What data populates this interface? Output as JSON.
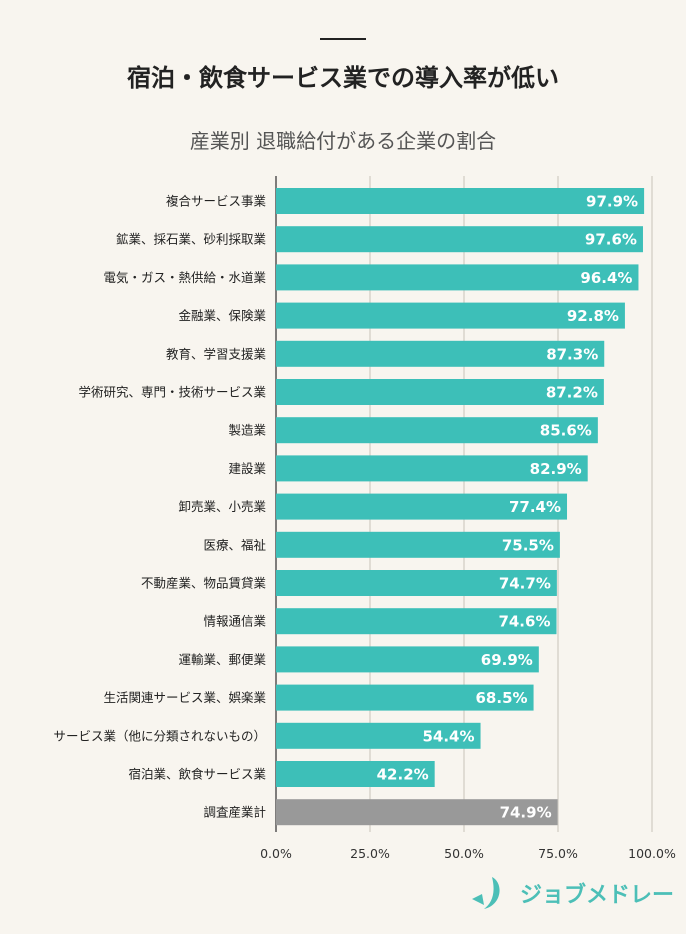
{
  "header": {
    "title": "宿泊・飲食サービス業での導入率が低い",
    "subtitle": "産業別 退職給付がある企業の割合"
  },
  "chart_data": {
    "type": "bar",
    "orientation": "horizontal",
    "title": "産業別 退職給付がある企業の割合",
    "categories": [
      "複合サービス事業",
      "鉱業、採石業、砂利採取業",
      "電気・ガス・熱供給・水道業",
      "金融業、保険業",
      "教育、学習支援業",
      "学術研究、専門・技術サービス業",
      "製造業",
      "建設業",
      "卸売業、小売業",
      "医療、福祉",
      "不動産業、物品賃貸業",
      "情報通信業",
      "運輸業、郵便業",
      "生活関連サービス業、娯楽業",
      "サービス業（他に分類されないもの）",
      "宿泊業、飲食サービス業",
      "調査産業計"
    ],
    "values": [
      97.9,
      97.6,
      96.4,
      92.8,
      87.3,
      87.2,
      85.6,
      82.9,
      77.4,
      75.5,
      74.7,
      74.6,
      69.9,
      68.5,
      54.4,
      42.2,
      74.9
    ],
    "value_labels": [
      "97.9%",
      "97.6%",
      "96.4%",
      "92.8%",
      "87.3%",
      "87.2%",
      "85.6%",
      "82.9%",
      "77.4%",
      "75.5%",
      "74.7%",
      "74.6%",
      "69.9%",
      "68.5%",
      "54.4%",
      "42.2%",
      "74.9%"
    ],
    "xlim": [
      0,
      100
    ],
    "xticks": [
      "0.0%",
      "25.0%",
      "50.0%",
      "75.0%",
      "100.0%"
    ],
    "grid": true,
    "colors": {
      "bar": "#3dbfb8",
      "total_bar": "#999999"
    }
  },
  "brand": {
    "name": "ジョブメドレー",
    "color": "#4cbfb7"
  }
}
